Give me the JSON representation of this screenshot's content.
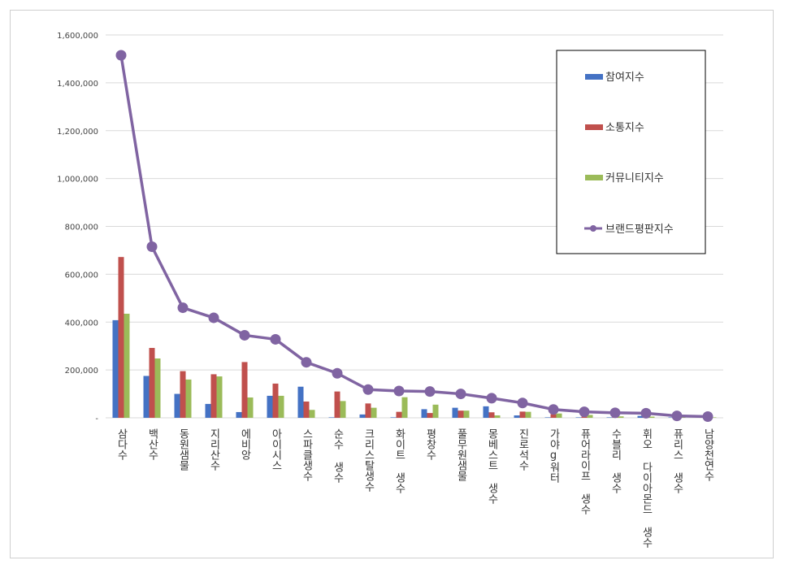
{
  "chart_data": {
    "type": "bar",
    "title": "",
    "xlabel": "",
    "ylabel": "",
    "ylim": [
      0,
      1600000
    ],
    "y_ticks": [
      "-",
      "200,000",
      "400,000",
      "600,000",
      "800,000",
      "1,000,000",
      "1,200,000",
      "1,400,000",
      "1,600,000"
    ],
    "grid": true,
    "legend_position": "top-right",
    "categories": [
      "삼다수",
      "백산수",
      "동원샘물",
      "지리산수",
      "에비앙",
      "아이시스",
      "스파클생수",
      "순수 생수",
      "크리스탈생수",
      "화이트 생수",
      "평창수",
      "풀무원샘물",
      "몽베스트 생수",
      "진로석수",
      "가야g워터",
      "퓨어라이프 생수",
      "수블리 생수",
      "휘오 다이아몬드 생수",
      "퓨리스 생수",
      "남양천연수"
    ],
    "series": [
      {
        "name": "참여지수",
        "type": "bar",
        "color": "#4472c4",
        "values": [
          408000,
          175000,
          100000,
          58000,
          24000,
          92000,
          130000,
          2000,
          14000,
          2000,
          36000,
          42000,
          48000,
          10000,
          2000,
          2000,
          2000,
          8000,
          2000,
          2000
        ]
      },
      {
        "name": "소통지수",
        "type": "bar",
        "color": "#c0504d",
        "values": [
          672000,
          292000,
          195000,
          182000,
          233000,
          143000,
          68000,
          110000,
          60000,
          25000,
          20000,
          30000,
          23000,
          26000,
          15000,
          5000,
          2000,
          8000,
          2000,
          2000
        ]
      },
      {
        "name": "커뮤니티지수",
        "type": "bar",
        "color": "#9bbb59",
        "values": [
          435000,
          248000,
          160000,
          173000,
          85000,
          92000,
          33000,
          70000,
          42000,
          86000,
          55000,
          30000,
          10000,
          25000,
          18000,
          12000,
          6000,
          5000,
          2000,
          2000
        ]
      },
      {
        "name": "브랜드평판지수",
        "type": "line",
        "color": "#8064a2",
        "values": [
          1515000,
          715000,
          460000,
          418000,
          345000,
          328000,
          232000,
          186000,
          118000,
          112000,
          110000,
          100000,
          82000,
          62000,
          35000,
          25000,
          21000,
          19000,
          8000,
          5000
        ]
      }
    ]
  }
}
